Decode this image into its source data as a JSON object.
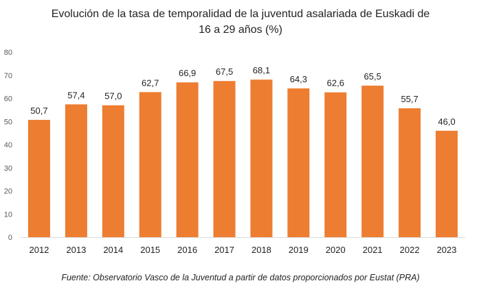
{
  "chart_data": {
    "type": "bar",
    "title_line1": "Evolución de la tasa de temporalidad de la juventud asalariada de Euskadi de",
    "title_line2": "16 a 29 años (%)",
    "categories": [
      "2012",
      "2013",
      "2014",
      "2015",
      "2016",
      "2017",
      "2018",
      "2019",
      "2020",
      "2021",
      "2022",
      "2023"
    ],
    "values": [
      50.7,
      57.4,
      57.0,
      62.7,
      66.9,
      67.5,
      68.1,
      64.3,
      62.6,
      65.5,
      55.7,
      46.0
    ],
    "data_labels": [
      "50,7",
      "57,4",
      "57,0",
      "62,7",
      "66,9",
      "67,5",
      "68,1",
      "64,3",
      "62,6",
      "65,5",
      "55,7",
      "46,0"
    ],
    "yticks": [
      "0",
      "10",
      "20",
      "30",
      "40",
      "50",
      "60",
      "70",
      "80"
    ],
    "ylim": [
      0,
      80
    ],
    "grid": false,
    "bar_color": "#ED7D31",
    "xlabel": "",
    "ylabel": ""
  },
  "source": "Fuente: Observatorio Vasco de la Juventud a partir de datos proporcionados por Eustat  (PRA)"
}
